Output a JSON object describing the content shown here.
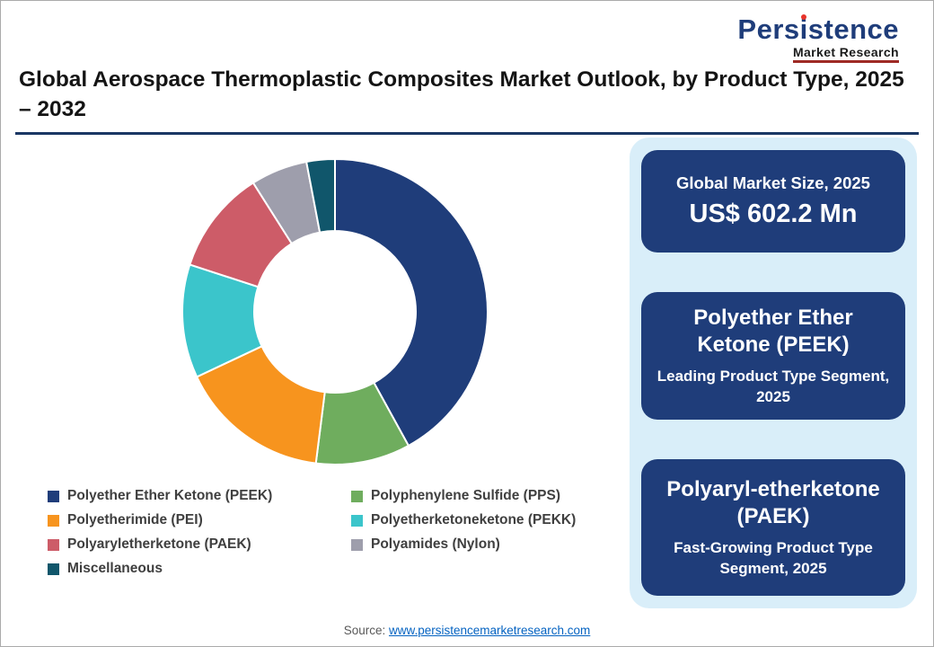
{
  "title": "Global Aerospace Thermoplastic Composites Market Outlook, by Product Type, 2025 – 2032",
  "logo": {
    "part1": "Pers",
    "i": "i",
    "part2": "stence",
    "tagline": "Market Research"
  },
  "chart_data": {
    "type": "pie",
    "subtype": "donut",
    "title": "Global Aerospace Thermoplastic Composites Market Outlook, by Product Type, 2025 – 2032",
    "start_angle_deg": 0,
    "direction": "clockwise",
    "inner_radius_ratio": 0.53,
    "legend_position": "bottom-two-columns",
    "segments": [
      {
        "label": "Polyether Ether Ketone (PEEK)",
        "value": 42,
        "color": "#1F3D7A"
      },
      {
        "label": "Polyphenylene Sulfide (PPS)",
        "value": 10,
        "color": "#6FAD5E"
      },
      {
        "label": "Polyetherimide (PEI)",
        "value": 16,
        "color": "#F7941E"
      },
      {
        "label": "Polyetherketoneketone (PEKK)",
        "value": 12,
        "color": "#3BC5CB"
      },
      {
        "label": "Polyaryletherketone (PAEK)",
        "value": 11,
        "color": "#CD5C68"
      },
      {
        "label": "Polyamides (Nylon)",
        "value": 6,
        "color": "#9E9EAC"
      },
      {
        "label": "Miscellaneous",
        "value": 3,
        "color": "#10566B"
      }
    ]
  },
  "legend": {
    "columns": [
      [
        0,
        2,
        4,
        6
      ],
      [
        1,
        3,
        5
      ]
    ]
  },
  "panel": {
    "background": "#D9EEF9",
    "box_background": "#1F3D7A",
    "boxes": [
      {
        "title": "Global Market Size, 2025",
        "value": "US$ 602.2 Mn"
      },
      {
        "headline": "Polyether Ether Ketone (PEEK)",
        "subtitle": "Leading Product Type Segment, 2025"
      },
      {
        "headline": "Polyaryl-etherketone (PAEK)",
        "subtitle": "Fast-Growing Product Type Segment, 2025"
      }
    ]
  },
  "source": {
    "prefix": "Source: ",
    "link": "www.persistencemarketresearch.com"
  }
}
